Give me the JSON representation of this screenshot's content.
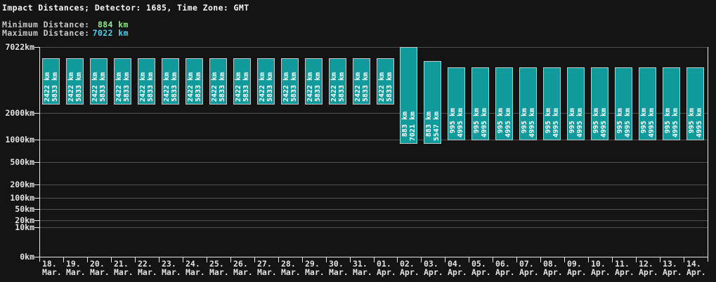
{
  "header": {
    "title": "Impact Distances; Detector: 1685, Time Zone: GMT",
    "min_label": "Minimum Distance:",
    "min_value": "884 km",
    "max_label": "Maximum Distance:",
    "max_value": "7022 km"
  },
  "colors": {
    "background": "#141414",
    "bar_fill": "#109a9b",
    "bar_border": "#c6c6c6",
    "grid_line": "#4f4f4f",
    "axis_line": "#e8e8e8",
    "label_text": "#e2e2e2",
    "min_value_text": "#8de88a",
    "max_value_text": "#52cfee",
    "bar_label_text": "#ffffff"
  },
  "chart_data": {
    "type": "bar",
    "subtype": "floating-range-bars",
    "title": "Impact Distances; Detector: 1685, Time Zone: GMT",
    "unit": "km",
    "ylim": [
      0,
      7022
    ],
    "scale": {
      "type": "power",
      "exponent": 0.3
    },
    "grid": "horizontal",
    "legend": "none",
    "y_ticks": [
      {
        "label": "7022km",
        "value": 7022
      },
      {
        "label": "2000km",
        "value": 2000
      },
      {
        "label": "1000km",
        "value": 1000
      },
      {
        "label": "500km",
        "value": 500
      },
      {
        "label": "200km",
        "value": 200
      },
      {
        "label": "100km",
        "value": 100
      },
      {
        "label": "50km",
        "value": 50
      },
      {
        "label": "20km",
        "value": 20
      },
      {
        "label": "10km",
        "value": 10
      },
      {
        "label": "0km",
        "value": 0
      }
    ],
    "bars": [
      {
        "day": "18.",
        "month": "Mar.",
        "low": 2422,
        "high": 5833
      },
      {
        "day": "19.",
        "month": "Mar.",
        "low": 2422,
        "high": 5833
      },
      {
        "day": "20.",
        "month": "Mar.",
        "low": 2422,
        "high": 5833
      },
      {
        "day": "21.",
        "month": "Mar.",
        "low": 2422,
        "high": 5833
      },
      {
        "day": "22.",
        "month": "Mar.",
        "low": 2422,
        "high": 5833
      },
      {
        "day": "23.",
        "month": "Mar.",
        "low": 2422,
        "high": 5833
      },
      {
        "day": "24.",
        "month": "Mar.",
        "low": 2422,
        "high": 5833
      },
      {
        "day": "25.",
        "month": "Mar.",
        "low": 2422,
        "high": 5833
      },
      {
        "day": "26.",
        "month": "Mar.",
        "low": 2422,
        "high": 5833
      },
      {
        "day": "27.",
        "month": "Mar.",
        "low": 2422,
        "high": 5833
      },
      {
        "day": "28.",
        "month": "Mar.",
        "low": 2422,
        "high": 5833
      },
      {
        "day": "29.",
        "month": "Mar.",
        "low": 2422,
        "high": 5833
      },
      {
        "day": "30.",
        "month": "Mar.",
        "low": 2422,
        "high": 5833
      },
      {
        "day": "31.",
        "month": "Mar.",
        "low": 2422,
        "high": 5833
      },
      {
        "day": "01.",
        "month": "Apr.",
        "low": 2422,
        "high": 5833
      },
      {
        "day": "02.",
        "month": "Apr.",
        "low": 883,
        "high": 7021
      },
      {
        "day": "03.",
        "month": "Apr.",
        "low": 883,
        "high": 5547
      },
      {
        "day": "04.",
        "month": "Apr.",
        "low": 995,
        "high": 4995
      },
      {
        "day": "05.",
        "month": "Apr.",
        "low": 995,
        "high": 4995
      },
      {
        "day": "06.",
        "month": "Apr.",
        "low": 995,
        "high": 4995
      },
      {
        "day": "07.",
        "month": "Apr.",
        "low": 995,
        "high": 4995
      },
      {
        "day": "08.",
        "month": "Apr.",
        "low": 995,
        "high": 4995
      },
      {
        "day": "09.",
        "month": "Apr.",
        "low": 995,
        "high": 4995
      },
      {
        "day": "10.",
        "month": "Apr.",
        "low": 995,
        "high": 4995
      },
      {
        "day": "11.",
        "month": "Apr.",
        "low": 995,
        "high": 4995
      },
      {
        "day": "12.",
        "month": "Apr.",
        "low": 995,
        "high": 4995
      },
      {
        "day": "13.",
        "month": "Apr.",
        "low": 995,
        "high": 4995
      },
      {
        "day": "14.",
        "month": "Apr.",
        "low": 995,
        "high": 4995
      }
    ],
    "bar_label_format": "low then high, value right-padded to 4 chars + ' km', rotated 90deg CCW"
  }
}
